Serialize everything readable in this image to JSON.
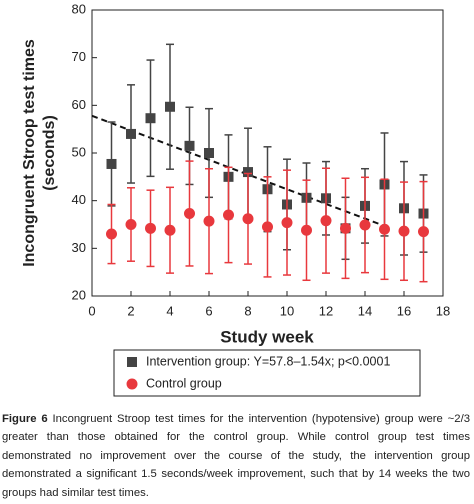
{
  "chart_data": {
    "type": "scatter",
    "x_label": "Study week",
    "y_label": [
      "Incongruent Stroop test times",
      "(seconds)"
    ],
    "x": [
      1,
      2,
      3,
      4,
      5,
      6,
      7,
      8,
      9,
      10,
      11,
      12,
      13,
      14,
      15,
      16,
      17
    ],
    "series": [
      {
        "name": "Intervention group: Y=57.8–1.54x; p<0.0001",
        "color": "#444444",
        "marker": "square",
        "values": [
          47.7,
          54.0,
          57.3,
          59.7,
          51.5,
          50.0,
          45.0,
          46.0,
          42.4,
          39.2,
          40.6,
          40.5,
          34.2,
          38.9,
          43.4,
          38.4,
          37.3
        ],
        "errors": [
          8.8,
          10.3,
          12.2,
          13.1,
          8.1,
          9.3,
          8.8,
          9.2,
          8.9,
          9.5,
          7.3,
          7.7,
          6.5,
          7.8,
          10.8,
          9.8,
          8.1
        ]
      },
      {
        "name": "Control group",
        "color": "#e8383d",
        "marker": "circle",
        "values": [
          33.0,
          35.0,
          34.2,
          33.8,
          37.3,
          35.7,
          37.0,
          36.2,
          34.5,
          35.4,
          33.8,
          35.8,
          34.2,
          34.9,
          34.0,
          33.6,
          33.5
        ],
        "errors": [
          6.2,
          7.7,
          8.0,
          9.0,
          11.0,
          11.0,
          10.0,
          9.5,
          10.5,
          11.0,
          10.5,
          11.0,
          10.5,
          10.0,
          10.5,
          10.3,
          10.5
        ]
      }
    ],
    "trendline": {
      "x": [
        0,
        15
      ],
      "y": [
        57.8,
        34.7
      ]
    },
    "xlim": [
      0,
      18
    ],
    "xticks": [
      0,
      2,
      4,
      6,
      8,
      10,
      12,
      14,
      16,
      18
    ],
    "ylim": [
      20,
      80
    ],
    "yticks": [
      20,
      30,
      40,
      50,
      60,
      70,
      80
    ]
  },
  "caption": {
    "label": "Figure 6",
    "text": "Incongruent Stroop test times for the intervention (hypotensive) group were ~2/3 greater than those obtained for the control group. While control group test times demonstrated no improvement over the course of the study, the intervention group demonstrated a significant 1.5 seconds/week improvement, such that by 14 weeks the two groups had similar test times."
  }
}
